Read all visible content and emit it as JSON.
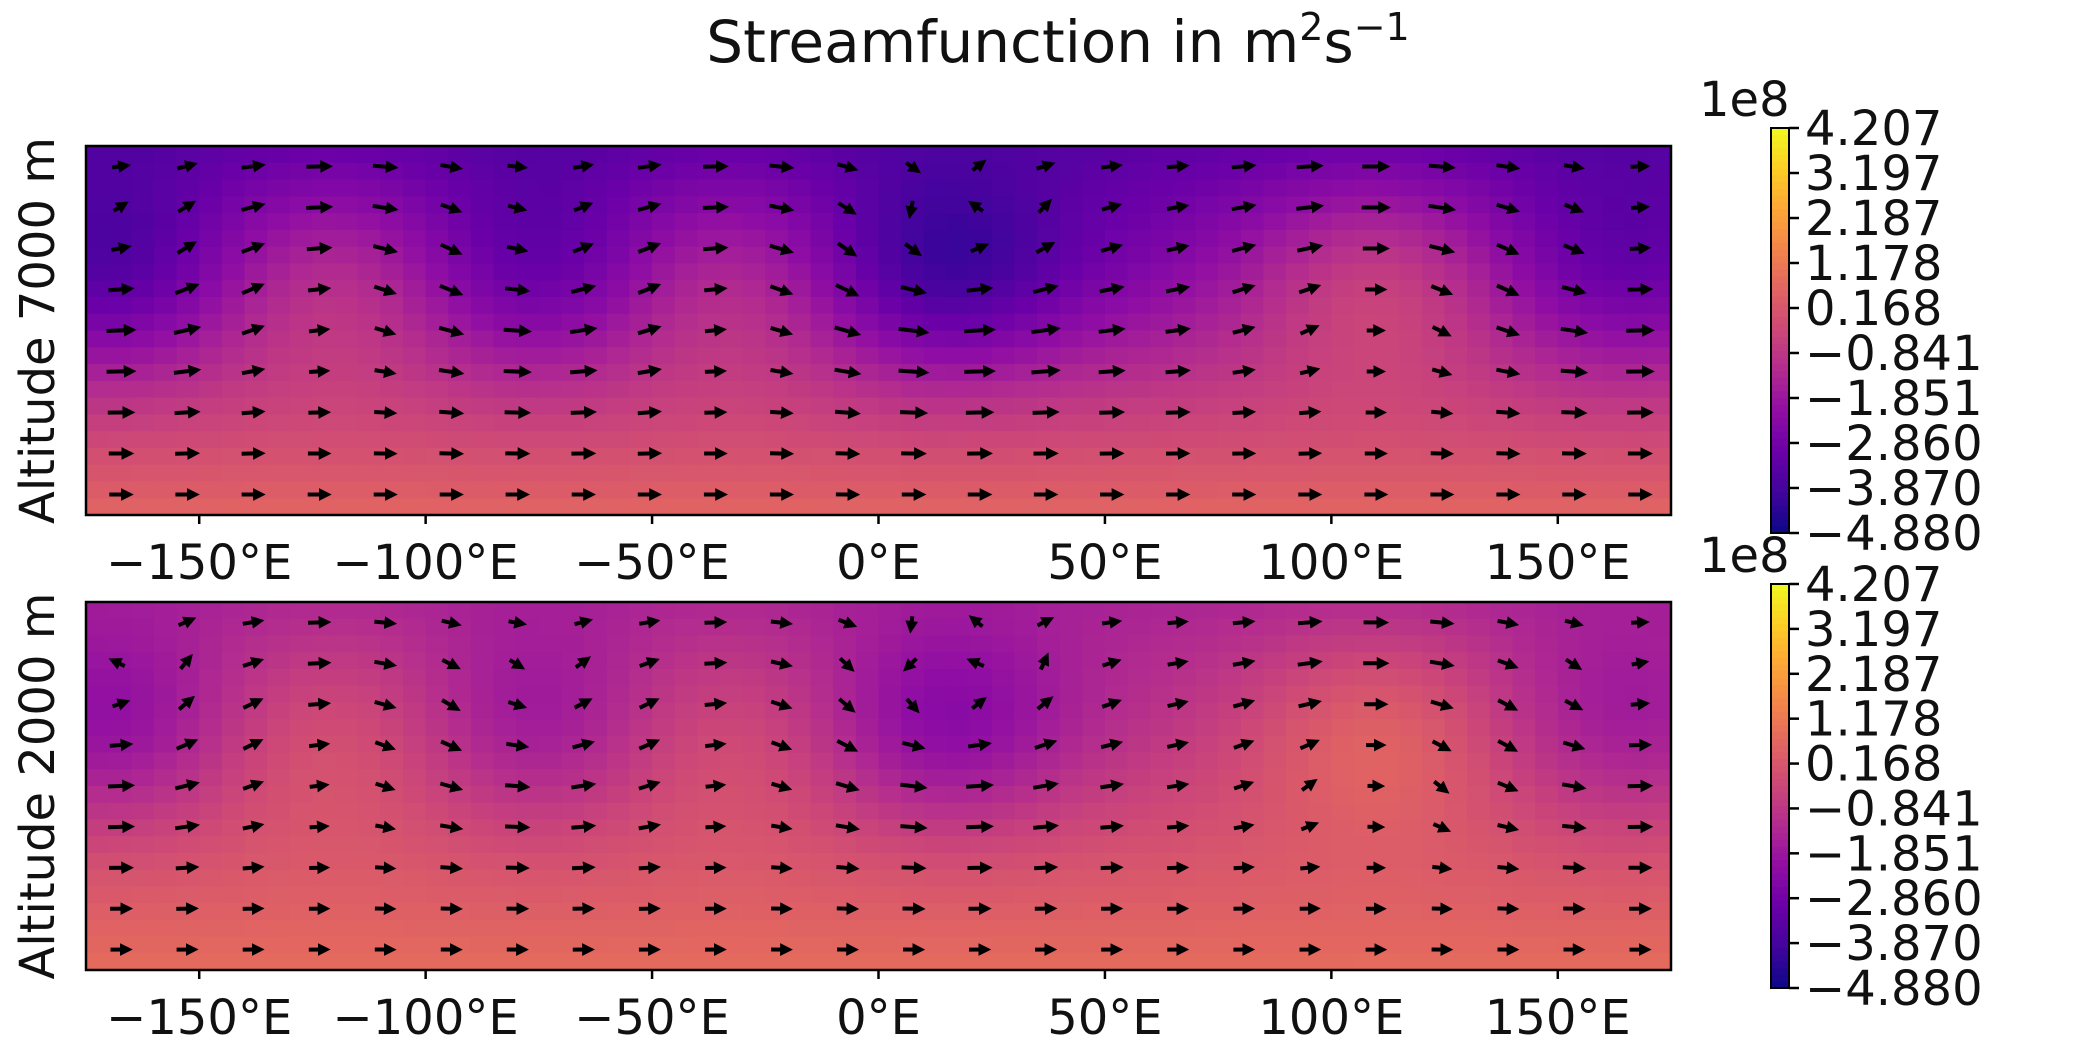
{
  "title": "Streamfunction in m²s⁻¹",
  "title_parts": {
    "main": "Streamfunction in m",
    "sup1": "2",
    "mid": "s",
    "sup2": "−1"
  },
  "colormap": [
    "#0d0887",
    "#41049d",
    "#6a00a8",
    "#8f0da4",
    "#b12a90",
    "#cc4778",
    "#e16462",
    "#f2844b",
    "#fca636",
    "#fcce25",
    "#f0f921"
  ],
  "chart_data": [
    {
      "type": "heatmap",
      "subtype": "filled-contour-with-quiver",
      "ylabel": "Altitude 7000 m",
      "xlim": [
        -175,
        175
      ],
      "xticks": [
        -150,
        -100,
        -50,
        0,
        50,
        100,
        150
      ],
      "xtick_labels": [
        "−150°E",
        "−100°E",
        "−50°E",
        "0°E",
        "50°E",
        "100°E",
        "150°E"
      ],
      "vortices": [
        {
          "lon": -170,
          "v": -1.6
        },
        {
          "lon": -120,
          "v": 0.9
        },
        {
          "lon": -75,
          "v": -1.3
        },
        {
          "lon": -35,
          "v": 0.8
        },
        {
          "lon": 15,
          "v": -2.0
        },
        {
          "lon": 55,
          "v": -0.4
        },
        {
          "lon": 110,
          "v": 1.3
        },
        {
          "lon": 165,
          "v": -1.2
        }
      ],
      "baseline": {
        "top": -3.3,
        "bottom": 0.6
      },
      "colorbar": {
        "exponent_label": "1e8",
        "vmin": -4.88,
        "vmax": 4.207,
        "ticks": [
          -4.88,
          -3.87,
          -2.86,
          -1.851,
          -0.841,
          0.168,
          1.178,
          2.187,
          3.197,
          4.207
        ],
        "tick_labels": [
          "−4.880",
          "−3.870",
          "−2.860",
          "−1.851",
          "−0.841",
          "0.168",
          "1.178",
          "2.187",
          "3.197",
          "4.207"
        ]
      },
      "grid": false,
      "legend": "none"
    },
    {
      "type": "heatmap",
      "subtype": "filled-contour-with-quiver",
      "ylabel": "Altitude 2000 m",
      "xlim": [
        -175,
        175
      ],
      "xticks": [
        -150,
        -100,
        -50,
        0,
        50,
        100,
        150
      ],
      "xtick_labels": [
        "−150°E",
        "−100°E",
        "−50°E",
        "0°E",
        "50°E",
        "100°E",
        "150°E"
      ],
      "vortices": [
        {
          "lon": -170,
          "v": -1.4
        },
        {
          "lon": -120,
          "v": 0.6
        },
        {
          "lon": -75,
          "v": -1.1
        },
        {
          "lon": -35,
          "v": 0.5
        },
        {
          "lon": 15,
          "v": -1.6
        },
        {
          "lon": 55,
          "v": -0.2
        },
        {
          "lon": 110,
          "v": 1.1
        },
        {
          "lon": 165,
          "v": -1.0
        }
      ],
      "baseline": {
        "top": -1.4,
        "bottom": 0.8
      },
      "colorbar": {
        "exponent_label": "1e8",
        "vmin": -4.88,
        "vmax": 4.207,
        "ticks": [
          -4.88,
          -3.87,
          -2.86,
          -1.851,
          -0.841,
          0.168,
          1.178,
          2.187,
          3.197,
          4.207
        ],
        "tick_labels": [
          "−4.880",
          "−3.870",
          "−2.860",
          "−1.851",
          "−0.841",
          "0.168",
          "1.178",
          "2.187",
          "3.197",
          "4.207"
        ]
      },
      "grid": false,
      "legend": "none"
    }
  ]
}
